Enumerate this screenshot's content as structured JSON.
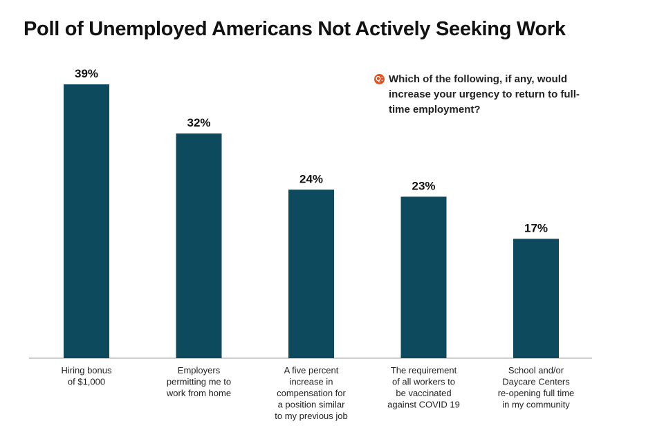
{
  "chart_data": {
    "type": "bar",
    "title": "Poll of Unemployed Americans Not Actively Seeking Work",
    "question_marker": "Q:",
    "question": "Which of the following, if any, would increase your urgency to return to full-time employment?",
    "categories": [
      [
        "Hiring bonus",
        "of $1,000"
      ],
      [
        "Employers",
        "permitting me to",
        "work from home"
      ],
      [
        "A five percent",
        "increase in",
        "compensation for",
        "a position similar",
        "to my previous job"
      ],
      [
        "The requirement",
        "of all workers to",
        "be vaccinated",
        "against COVID 19"
      ],
      [
        "School and/or",
        "Daycare Centers",
        "re-opening full time",
        "in my community"
      ]
    ],
    "values": [
      39,
      32,
      24,
      23,
      17
    ],
    "value_labels": [
      "39%",
      "32%",
      "24%",
      "23%",
      "17%"
    ],
    "ylim": [
      0,
      39
    ],
    "bar_color": "#0e4a5e"
  }
}
